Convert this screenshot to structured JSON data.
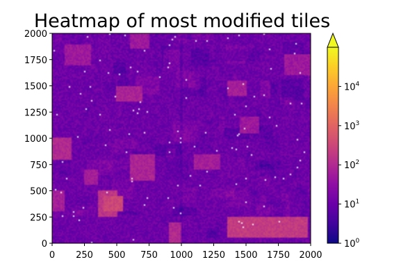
{
  "chart_data": {
    "type": "heatmap",
    "title": "Heatmap of most modified tiles",
    "xlabel": "",
    "ylabel": "",
    "xlim": [
      0,
      2000
    ],
    "ylim": [
      0,
      2000
    ],
    "x_ticks": [
      0,
      250,
      500,
      750,
      1000,
      1250,
      1500,
      1750,
      2000
    ],
    "y_ticks": [
      0,
      250,
      500,
      750,
      1000,
      1250,
      1500,
      1750,
      2000
    ],
    "x_tick_labels": [
      "0",
      "250",
      "500",
      "750",
      "1000",
      "1250",
      "1500",
      "1750",
      "2000"
    ],
    "y_tick_labels": [
      "0",
      "250",
      "500",
      "750",
      "1000",
      "1250",
      "1500",
      "1750",
      "2000"
    ],
    "colormap": "plasma",
    "colorbar": {
      "scale": "log",
      "min": 1,
      "max": 100000,
      "extend": "max",
      "ticks": [
        1,
        10,
        100,
        1000,
        10000
      ],
      "tick_labels": [
        {
          "base": "10",
          "exp": "0"
        },
        {
          "base": "10",
          "exp": "1"
        },
        {
          "base": "10",
          "exp": "2"
        },
        {
          "base": "10",
          "exp": "3"
        },
        {
          "base": "10",
          "exp": "4"
        }
      ]
    },
    "grid": false,
    "hotspots": [
      {
        "x": [
          1350,
          1980
        ],
        "y": [
          50,
          250
        ],
        "level": 2.3
      },
      {
        "x": [
          350,
          500
        ],
        "y": [
          250,
          500
        ],
        "level": 2.2
      },
      {
        "x": [
          400,
          550
        ],
        "y": [
          300,
          450
        ],
        "level": 2.5
      },
      {
        "x": [
          0,
          150
        ],
        "y": [
          800,
          1000
        ],
        "level": 2.0
      },
      {
        "x": [
          600,
          800
        ],
        "y": [
          600,
          850
        ],
        "level": 1.9
      },
      {
        "x": [
          500,
          700
        ],
        "y": [
          1350,
          1500
        ],
        "level": 1.9
      },
      {
        "x": [
          1350,
          1500
        ],
        "y": [
          1400,
          1550
        ],
        "level": 1.8
      },
      {
        "x": [
          1100,
          1300
        ],
        "y": [
          700,
          850
        ],
        "level": 1.8
      },
      {
        "x": [
          100,
          300
        ],
        "y": [
          1700,
          1900
        ],
        "level": 1.7
      },
      {
        "x": [
          600,
          750
        ],
        "y": [
          1850,
          2000
        ],
        "level": 1.7
      },
      {
        "x": [
          1800,
          2000
        ],
        "y": [
          1600,
          1800
        ],
        "level": 1.7
      },
      {
        "x": [
          900,
          1000
        ],
        "y": [
          0,
          200
        ],
        "level": 2.0
      },
      {
        "x": [
          0,
          100
        ],
        "y": [
          300,
          500
        ],
        "level": 1.8
      },
      {
        "x": [
          250,
          350
        ],
        "y": [
          550,
          700
        ],
        "level": 1.8
      },
      {
        "x": [
          1450,
          1600
        ],
        "y": [
          1050,
          1200
        ],
        "level": 1.7
      }
    ]
  }
}
